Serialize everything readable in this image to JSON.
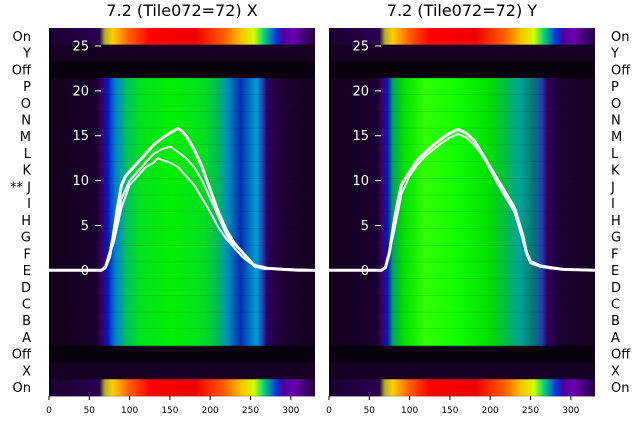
{
  "chart_data": [
    {
      "type": "heatmap",
      "title": "7.2 (Tile072=72) X",
      "row_labels": [
        "On",
        "Y",
        "Off",
        "P",
        "O",
        "N",
        "M",
        "L",
        "K",
        "** J",
        "I",
        "H",
        "G",
        "F",
        "E",
        "D",
        "C",
        "B",
        "A",
        "Off",
        "X",
        "On"
      ],
      "xlim": [
        0,
        330
      ],
      "xticks": [
        0,
        50,
        100,
        150,
        200,
        250,
        300
      ],
      "overlay": {
        "type": "line",
        "ylim": [
          -14,
          27
        ],
        "yticks": [
          0,
          5,
          10,
          15,
          20,
          25
        ],
        "line_color": "#ffffff",
        "series": [
          {
            "x": [
              0,
              65,
              70,
              75,
              80,
              85,
              90,
              95,
              100,
              110,
              120,
              130,
              140,
              150,
              160,
              165,
              170,
              180,
              190,
              200,
              210,
              220,
              230,
              240,
              248,
              255,
              262,
              268,
              275,
              290,
              310,
              330
            ],
            "y": [
              0,
              0,
              0.3,
              1.5,
              4,
              7,
              9.5,
              10.5,
              11,
              12,
              13,
              14,
              14.7,
              15.3,
              15.8,
              15.5,
              15,
              13.5,
              11.5,
              9,
              6.5,
              4.5,
              3,
              2,
              1.2,
              0.5,
              0.3,
              0.2,
              0.2,
              0.1,
              0,
              0
            ]
          },
          {
            "x": [
              0,
              65,
              70,
              80,
              90,
              100,
              110,
              120,
              130,
              140,
              150,
              160,
              170,
              180,
              190,
              200,
              210,
              220,
              230,
              240,
              250,
              260,
              275,
              330
            ],
            "y": [
              0,
              0,
              0.5,
              3.5,
              8,
              10,
              11,
              12,
              13,
              13.5,
              13.8,
              13.2,
              12.5,
              11.5,
              10,
              8,
              6,
              4,
              2.5,
              1.5,
              0.8,
              0.4,
              0.2,
              0
            ]
          },
          {
            "x": [
              0,
              65,
              70,
              80,
              90,
              100,
              110,
              120,
              130,
              135,
              140,
              150,
              160,
              170,
              180,
              190,
              200,
              210,
              220,
              230,
              240,
              250,
              260,
              275,
              330
            ],
            "y": [
              0,
              0,
              0.4,
              3,
              7,
              9.5,
              10.5,
              11.5,
              12,
              12.5,
              12.3,
              12,
              11.5,
              10.5,
              9.5,
              8,
              6.5,
              4.8,
              3.5,
              2.5,
              1.5,
              0.8,
              0.5,
              0.2,
              0
            ]
          }
        ]
      }
    },
    {
      "type": "heatmap",
      "title": "7.2 (Tile072=72) Y",
      "row_labels": [
        "On",
        "Y",
        "Off",
        "P",
        "O",
        "N",
        "M",
        "L",
        "K",
        "J",
        "I",
        "H",
        "G",
        "F",
        "E",
        "D",
        "C",
        "B",
        "A",
        "Off",
        "X",
        "On"
      ],
      "xlim": [
        0,
        330
      ],
      "xticks": [
        0,
        50,
        100,
        150,
        200,
        250,
        300
      ],
      "overlay": {
        "type": "line",
        "ylim": [
          -14,
          27
        ],
        "yticks": [
          0,
          5,
          10,
          15,
          20,
          25
        ],
        "line_color": "#ffffff",
        "series": [
          {
            "x": [
              0,
              65,
              70,
              75,
              80,
              85,
              90,
              100,
              110,
              120,
              130,
              140,
              150,
              160,
              170,
              180,
              190,
              200,
              210,
              220,
              230,
              240,
              245,
              250,
              262,
              275,
              290,
              330
            ],
            "y": [
              0,
              0,
              0.3,
              2,
              5,
              7.5,
              9.5,
              11,
              12.3,
              13.2,
              14,
              14.7,
              15.3,
              15.7,
              15.3,
              14.5,
              13,
              11.5,
              10,
              8.5,
              7,
              4,
              2,
              1,
              0.5,
              0.3,
              0.1,
              0
            ]
          },
          {
            "x": [
              0,
              65,
              70,
              80,
              90,
              100,
              110,
              120,
              130,
              140,
              150,
              160,
              170,
              180,
              190,
              200,
              210,
              220,
              230,
              240,
              245,
              250,
              262,
              275,
              330
            ],
            "y": [
              0,
              0,
              0.4,
              4,
              8.5,
              10.5,
              11.8,
              12.8,
              13.5,
              14.2,
              14.8,
              15.2,
              14.8,
              14,
              12.8,
              11.2,
              9.5,
              8,
              6.5,
              3.5,
              1.8,
              0.8,
              0.4,
              0.2,
              0
            ]
          }
        ]
      }
    }
  ]
}
